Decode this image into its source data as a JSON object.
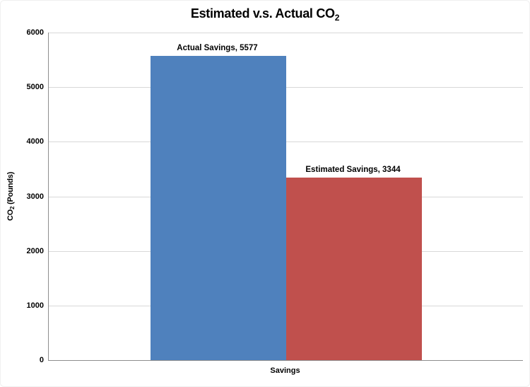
{
  "title": {
    "text": "Estimated v.s. Actual CO",
    "subscript": "2"
  },
  "y_axis": {
    "label_prefix": "CO",
    "label_subscript": "2",
    "label_suffix": " (Pounds)"
  },
  "x_axis": {
    "label": "Savings"
  },
  "chart_data": {
    "type": "bar",
    "title": "Estimated v.s. Actual CO2",
    "categories": [
      "Savings"
    ],
    "series": [
      {
        "name": "Actual Savings",
        "values": [
          5577
        ],
        "color": "#4F81BD",
        "data_label": "Actual Savings, 5577"
      },
      {
        "name": "Estimated Savings",
        "values": [
          3344
        ],
        "color": "#C0504D",
        "data_label": "Estimated Savings, 3344"
      }
    ],
    "xlabel": "Savings",
    "ylabel": "CO2 (Pounds)",
    "ylim": [
      0,
      6000
    ],
    "yticks": [
      0,
      1000,
      2000,
      3000,
      4000,
      5000,
      6000
    ],
    "grid": true,
    "legend_position": "none",
    "colors": {
      "axis_line": "#8e8e8e",
      "gridline": "#d8d8d8",
      "bar_blue": "#4F81BD",
      "bar_red": "#C0504D"
    }
  }
}
